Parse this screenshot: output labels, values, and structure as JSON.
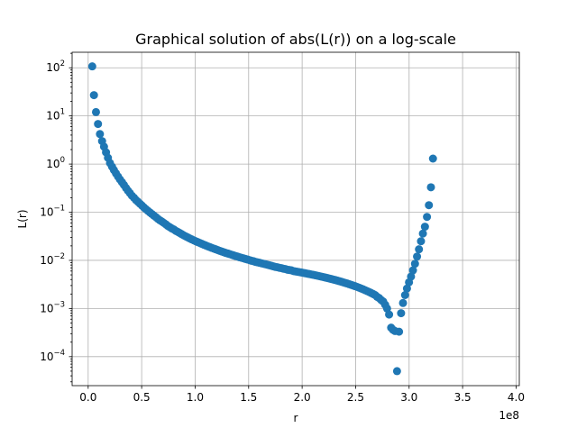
{
  "chart_data": {
    "type": "scatter",
    "title": "Graphical solution of abs(L(r)) on a log-scale",
    "xlabel": "r",
    "ylabel": "L(r)",
    "x_offset_label": "1e8",
    "x_scale": "linear",
    "y_scale": "log",
    "xlim": [
      -15000000,
      403000000
    ],
    "ylim": [
      2.5e-05,
      210
    ],
    "grid": true,
    "marker_color": "#1f77b4",
    "x_ticks": [
      0,
      50000000,
      100000000,
      150000000,
      200000000,
      250000000,
      300000000,
      350000000,
      400000000
    ],
    "x_tick_labels": [
      "0.0",
      "0.5",
      "1.0",
      "1.5",
      "2.0",
      "2.5",
      "3.0",
      "3.5",
      "4.0"
    ],
    "y_ticks": [
      0.0001,
      0.001,
      0.01,
      0.1,
      1,
      10,
      100
    ],
    "y_tick_labels": [
      {
        "base": "10",
        "exp": "−4"
      },
      {
        "base": "10",
        "exp": "−3"
      },
      {
        "base": "10",
        "exp": "−2"
      },
      {
        "base": "10",
        "exp": "−1"
      },
      {
        "base": "10",
        "exp": "0"
      },
      {
        "base": "10",
        "exp": "1"
      },
      {
        "base": "10",
        "exp": "2"
      }
    ],
    "points": [
      [
        3800000,
        107
      ],
      [
        5400000,
        27
      ],
      [
        7300000,
        12
      ],
      [
        9200000,
        6.8
      ],
      [
        11000000,
        4.2
      ],
      [
        13000000,
        3.0
      ],
      [
        14800000,
        2.3
      ],
      [
        16700000,
        1.75
      ],
      [
        18500000,
        1.35
      ],
      [
        20400000,
        1.05
      ],
      [
        22300000,
        0.88
      ],
      [
        24100000,
        0.75
      ],
      [
        26000000,
        0.64
      ],
      [
        27900000,
        0.55
      ],
      [
        29700000,
        0.48
      ],
      [
        31600000,
        0.42
      ],
      [
        33400000,
        0.37
      ],
      [
        35300000,
        0.32
      ],
      [
        37200000,
        0.28
      ],
      [
        39000000,
        0.25
      ],
      [
        40900000,
        0.22
      ],
      [
        42800000,
        0.2
      ],
      [
        44600000,
        0.18
      ],
      [
        46500000,
        0.165
      ],
      [
        48400000,
        0.15
      ],
      [
        50200000,
        0.138
      ],
      [
        52100000,
        0.126
      ],
      [
        53900000,
        0.116
      ],
      [
        55800000,
        0.107
      ],
      [
        57700000,
        0.099
      ],
      [
        59500000,
        0.092
      ],
      [
        61400000,
        0.085
      ],
      [
        63300000,
        0.079
      ],
      [
        65100000,
        0.073
      ],
      [
        67000000,
        0.068
      ],
      [
        68900000,
        0.064
      ],
      [
        70700000,
        0.06
      ],
      [
        72600000,
        0.056
      ],
      [
        74400000,
        0.052
      ],
      [
        76300000,
        0.049
      ],
      [
        78200000,
        0.046
      ],
      [
        80000000,
        0.044
      ],
      [
        81900000,
        0.041
      ],
      [
        83800000,
        0.039
      ],
      [
        85600000,
        0.037
      ],
      [
        87500000,
        0.035
      ],
      [
        89400000,
        0.033
      ],
      [
        91200000,
        0.0315
      ],
      [
        93100000,
        0.03
      ],
      [
        94900000,
        0.0286
      ],
      [
        96800000,
        0.0273
      ],
      [
        98700000,
        0.0261
      ],
      [
        100500000,
        0.025
      ],
      [
        102400000,
        0.024
      ],
      [
        104300000,
        0.023
      ],
      [
        106100000,
        0.0221
      ],
      [
        108000000,
        0.0212
      ],
      [
        109900000,
        0.0204
      ],
      [
        111700000,
        0.0196
      ],
      [
        113600000,
        0.0189
      ],
      [
        115400000,
        0.0182
      ],
      [
        117300000,
        0.0176
      ],
      [
        119200000,
        0.017
      ],
      [
        121000000,
        0.0164
      ],
      [
        122900000,
        0.0158
      ],
      [
        124800000,
        0.0153
      ],
      [
        126600000,
        0.0148
      ],
      [
        128500000,
        0.0143
      ],
      [
        130400000,
        0.0139
      ],
      [
        132200000,
        0.0135
      ],
      [
        134100000,
        0.0131
      ],
      [
        135900000,
        0.0127
      ],
      [
        137800000,
        0.0123
      ],
      [
        139700000,
        0.012
      ],
      [
        141500000,
        0.0116
      ],
      [
        143400000,
        0.0113
      ],
      [
        145300000,
        0.011
      ],
      [
        147100000,
        0.0107
      ],
      [
        149000000,
        0.0104
      ],
      [
        150900000,
        0.0101
      ],
      [
        152700000,
        0.0098
      ],
      [
        154600000,
        0.0096
      ],
      [
        156400000,
        0.0093
      ],
      [
        158300000,
        0.0091
      ],
      [
        160200000,
        0.0089
      ],
      [
        162000000,
        0.0087
      ],
      [
        163900000,
        0.0085
      ],
      [
        165800000,
        0.0083
      ],
      [
        167600000,
        0.0081
      ],
      [
        169500000,
        0.0079
      ],
      [
        171400000,
        0.0077
      ],
      [
        173200000,
        0.0075
      ],
      [
        175100000,
        0.0073
      ],
      [
        176900000,
        0.0072
      ],
      [
        178800000,
        0.007
      ],
      [
        180700000,
        0.0069
      ],
      [
        182500000,
        0.0067
      ],
      [
        184400000,
        0.0066
      ],
      [
        186300000,
        0.0064
      ],
      [
        188100000,
        0.0063
      ],
      [
        190000000,
        0.0062
      ],
      [
        191900000,
        0.006
      ],
      [
        193700000,
        0.0059
      ],
      [
        195600000,
        0.0058
      ],
      [
        197400000,
        0.0057
      ],
      [
        199300000,
        0.0056
      ],
      [
        201200000,
        0.0055
      ],
      [
        203000000,
        0.0054
      ],
      [
        204900000,
        0.0053
      ],
      [
        206800000,
        0.0052
      ],
      [
        208600000,
        0.0051
      ],
      [
        210500000,
        0.005
      ],
      [
        212400000,
        0.0049
      ],
      [
        214200000,
        0.0048
      ],
      [
        216100000,
        0.0047
      ],
      [
        217900000,
        0.0046
      ],
      [
        219800000,
        0.0045
      ],
      [
        221700000,
        0.0044
      ],
      [
        223500000,
        0.0043
      ],
      [
        225400000,
        0.0042
      ],
      [
        227300000,
        0.0041
      ],
      [
        229100000,
        0.004
      ],
      [
        231000000,
        0.0039
      ],
      [
        232900000,
        0.0038
      ],
      [
        234700000,
        0.0037
      ],
      [
        236600000,
        0.0036
      ],
      [
        238400000,
        0.0035
      ],
      [
        240300000,
        0.0034
      ],
      [
        242200000,
        0.0033
      ],
      [
        244000000,
        0.0032
      ],
      [
        245900000,
        0.0031
      ],
      [
        247800000,
        0.003
      ],
      [
        249600000,
        0.0029
      ],
      [
        251500000,
        0.0028
      ],
      [
        253400000,
        0.0027
      ],
      [
        255200000,
        0.0026
      ],
      [
        257100000,
        0.0025
      ],
      [
        258900000,
        0.0024
      ],
      [
        260800000,
        0.0023
      ],
      [
        262700000,
        0.0022
      ],
      [
        264500000,
        0.0021
      ],
      [
        266400000,
        0.002
      ],
      [
        268300000,
        0.0019
      ],
      [
        270100000,
        0.00175
      ],
      [
        272000000,
        0.00165
      ],
      [
        273900000,
        0.0015
      ],
      [
        275700000,
        0.0014
      ],
      [
        277600000,
        0.0012
      ],
      [
        279400000,
        0.001
      ],
      [
        281300000,
        0.00075
      ],
      [
        283200000,
        0.0004
      ],
      [
        285000000,
        0.00036
      ],
      [
        286900000,
        0.00034
      ],
      [
        288700000,
        5e-05
      ],
      [
        290600000,
        0.00033
      ],
      [
        292500000,
        0.0008
      ],
      [
        294300000,
        0.0013
      ],
      [
        296200000,
        0.0019
      ],
      [
        298000000,
        0.0026
      ],
      [
        299900000,
        0.0035
      ],
      [
        301800000,
        0.0046
      ],
      [
        303600000,
        0.0062
      ],
      [
        305500000,
        0.0085
      ],
      [
        307400000,
        0.012
      ],
      [
        309200000,
        0.017
      ],
      [
        311100000,
        0.025
      ],
      [
        312900000,
        0.036
      ],
      [
        314800000,
        0.05
      ],
      [
        316700000,
        0.08
      ],
      [
        318500000,
        0.14
      ],
      [
        320400000,
        0.33
      ],
      [
        322300000,
        1.3
      ]
    ]
  }
}
